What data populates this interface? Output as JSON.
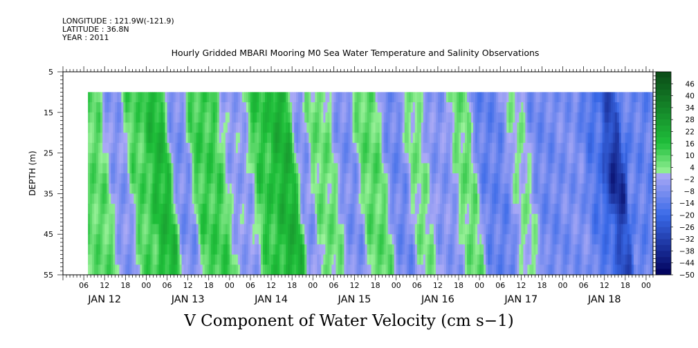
{
  "header": {
    "longitude": "LONGITUDE : 121.9W(-121.9)",
    "latitude": "LATITUDE : 36.8N",
    "year": "YEAR : 2011"
  },
  "chart_data": {
    "type": "heatmap",
    "title": "Hourly Gridded MBARI Mooring M0 Sea Water Temperature and Salinity Observations",
    "subtitle": "V Component of Water Velocity (cm s−1)",
    "ylabel": "DEPTH (m)",
    "ylim": [
      5,
      55
    ],
    "y_inverted": true,
    "y_ticks": [
      5,
      15,
      25,
      35,
      45,
      55
    ],
    "y_data_range": [
      10,
      55
    ],
    "x_tick_labels": [
      "06",
      "12",
      "18",
      "00",
      "06",
      "12",
      "18",
      "00",
      "06",
      "12",
      "18",
      "00",
      "06",
      "12",
      "18",
      "00",
      "06",
      "12",
      "18",
      "00",
      "06",
      "12",
      "18",
      "00",
      "06",
      "12",
      "18",
      "00"
    ],
    "x_day_labels": [
      "JAN 12",
      "JAN 13",
      "JAN 14",
      "JAN 15",
      "JAN 16",
      "JAN 17",
      "JAN 18"
    ],
    "x_range_hours": [
      0,
      170
    ],
    "data_start_hour": 7.2,
    "colorbar": {
      "labels": [
        "46",
        "40",
        "34",
        "28",
        "22",
        "16",
        "10",
        "4",
        "-2",
        "-8",
        "-14",
        "-20",
        "-26",
        "-32",
        "-38",
        "-44",
        "-50"
      ],
      "min": -50,
      "max": 52,
      "step": 3
    },
    "colors": {
      "green_dark": "#0a4a16",
      "green_mid": "#1fbf3a",
      "green_light": "#9af29a",
      "blue_light": "#a8a8f5",
      "blue_mid": "#3a6ae8",
      "blue_dark": "#00005a"
    },
    "approx_field_bands": [
      {
        "hour_start": 7,
        "hour_end": 14,
        "v": 8
      },
      {
        "hour_start": 14,
        "hour_end": 20,
        "v": -6
      },
      {
        "hour_start": 20,
        "hour_end": 26,
        "v": 10
      },
      {
        "hour_start": 26,
        "hour_end": 32,
        "v": 18
      },
      {
        "hour_start": 32,
        "hour_end": 38,
        "v": -8
      },
      {
        "hour_start": 38,
        "hour_end": 48,
        "v": 12
      },
      {
        "hour_start": 48,
        "hour_end": 56,
        "v": -4
      },
      {
        "hour_start": 56,
        "hour_end": 62,
        "v": 14
      },
      {
        "hour_start": 62,
        "hour_end": 68,
        "v": 20
      },
      {
        "hour_start": 68,
        "hour_end": 72,
        "v": -6
      },
      {
        "hour_start": 72,
        "hour_end": 80,
        "v": 6
      },
      {
        "hour_start": 80,
        "hour_end": 86,
        "v": -8
      },
      {
        "hour_start": 86,
        "hour_end": 94,
        "v": 8
      },
      {
        "hour_start": 94,
        "hour_end": 100,
        "v": -10
      },
      {
        "hour_start": 100,
        "hour_end": 106,
        "v": 4
      },
      {
        "hour_start": 106,
        "hour_end": 114,
        "v": -6
      },
      {
        "hour_start": 114,
        "hour_end": 120,
        "v": 6
      },
      {
        "hour_start": 120,
        "hour_end": 130,
        "v": -12
      },
      {
        "hour_start": 130,
        "hour_end": 136,
        "v": 2
      },
      {
        "hour_start": 136,
        "hour_end": 144,
        "v": -10
      },
      {
        "hour_start": 144,
        "hour_end": 152,
        "v": -8
      },
      {
        "hour_start": 152,
        "hour_end": 158,
        "v": -16
      },
      {
        "hour_start": 158,
        "hour_end": 162,
        "v": -28
      },
      {
        "hour_start": 162,
        "hour_end": 170,
        "v": -12
      }
    ]
  }
}
